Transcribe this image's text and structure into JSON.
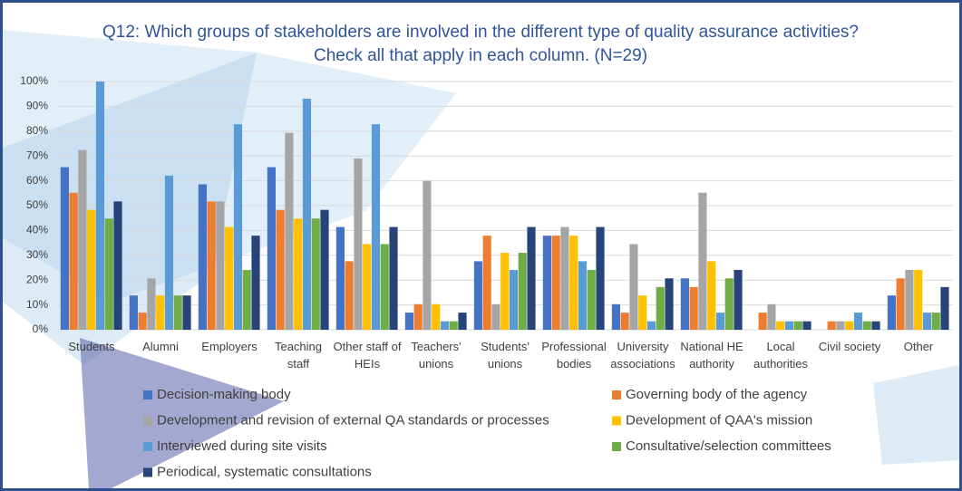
{
  "chart_data": {
    "type": "bar",
    "title": [
      "Q12: Which groups of stakeholders are involved in the different type of quality assurance activities?",
      "Check all that apply in each column. (N=29)"
    ],
    "categories": [
      "Students",
      "Alumni",
      "Employers",
      "Teaching staff",
      "Other staff of HEIs",
      "Teachers' unions",
      "Students' unions",
      "Professional bodies",
      "University associations",
      "National HE authority",
      "Local authorities",
      "Civil society",
      "Other"
    ],
    "series": [
      {
        "name": "Decision-making body",
        "color": "#4472c4",
        "values": [
          65.5,
          13.8,
          58.6,
          65.5,
          41.4,
          6.9,
          27.6,
          37.9,
          10.3,
          20.7,
          0,
          0,
          13.8
        ]
      },
      {
        "name": "Governing body of the agency",
        "color": "#ed7d31",
        "values": [
          55.2,
          6.9,
          51.7,
          48.3,
          27.6,
          10.3,
          37.9,
          37.9,
          6.9,
          17.2,
          6.9,
          3.4,
          20.7
        ]
      },
      {
        "name": "Development and revision of external QA standards or processes",
        "color": "#a5a5a5",
        "values": [
          72.4,
          20.7,
          51.7,
          79.3,
          69.0,
          60.0,
          10.3,
          41.4,
          34.5,
          55.2,
          10.3,
          3.4,
          24.1
        ]
      },
      {
        "name": "Development of QAA's mission",
        "color": "#ffc000",
        "values": [
          48.3,
          13.8,
          41.4,
          44.8,
          34.5,
          10.3,
          31.0,
          37.9,
          13.8,
          27.6,
          3.4,
          3.4,
          24.1
        ]
      },
      {
        "name": "Interviewed during site visits",
        "color": "#5b9bd5",
        "values": [
          100,
          62.1,
          82.8,
          93.1,
          82.8,
          3.4,
          24.1,
          27.6,
          3.4,
          6.9,
          3.4,
          6.9,
          6.9
        ]
      },
      {
        "name": "Consultative/selection committees",
        "color": "#70ad47",
        "values": [
          44.8,
          13.8,
          24.1,
          44.8,
          34.5,
          3.4,
          31.0,
          24.1,
          17.2,
          20.7,
          3.4,
          3.4,
          6.9
        ]
      },
      {
        "name": "Periodical, systematic consultations",
        "color": "#264478",
        "values": [
          51.7,
          13.8,
          37.9,
          48.3,
          41.4,
          6.9,
          41.4,
          41.4,
          20.7,
          24.1,
          3.4,
          3.4,
          17.2
        ]
      }
    ],
    "ylim": [
      0,
      100
    ],
    "yticks": [
      {
        "value": 0,
        "label": "0%"
      },
      {
        "value": 10,
        "label": "10%"
      },
      {
        "value": 20,
        "label": "20%"
      },
      {
        "value": 30,
        "label": "30%"
      },
      {
        "value": 40,
        "label": "40%"
      },
      {
        "value": 50,
        "label": "50%"
      },
      {
        "value": 60,
        "label": "60%"
      },
      {
        "value": 70,
        "label": "70%"
      },
      {
        "value": 80,
        "label": "80%"
      },
      {
        "value": 90,
        "label": "90%"
      },
      {
        "value": 100,
        "label": "100%"
      }
    ],
    "grid": true
  }
}
